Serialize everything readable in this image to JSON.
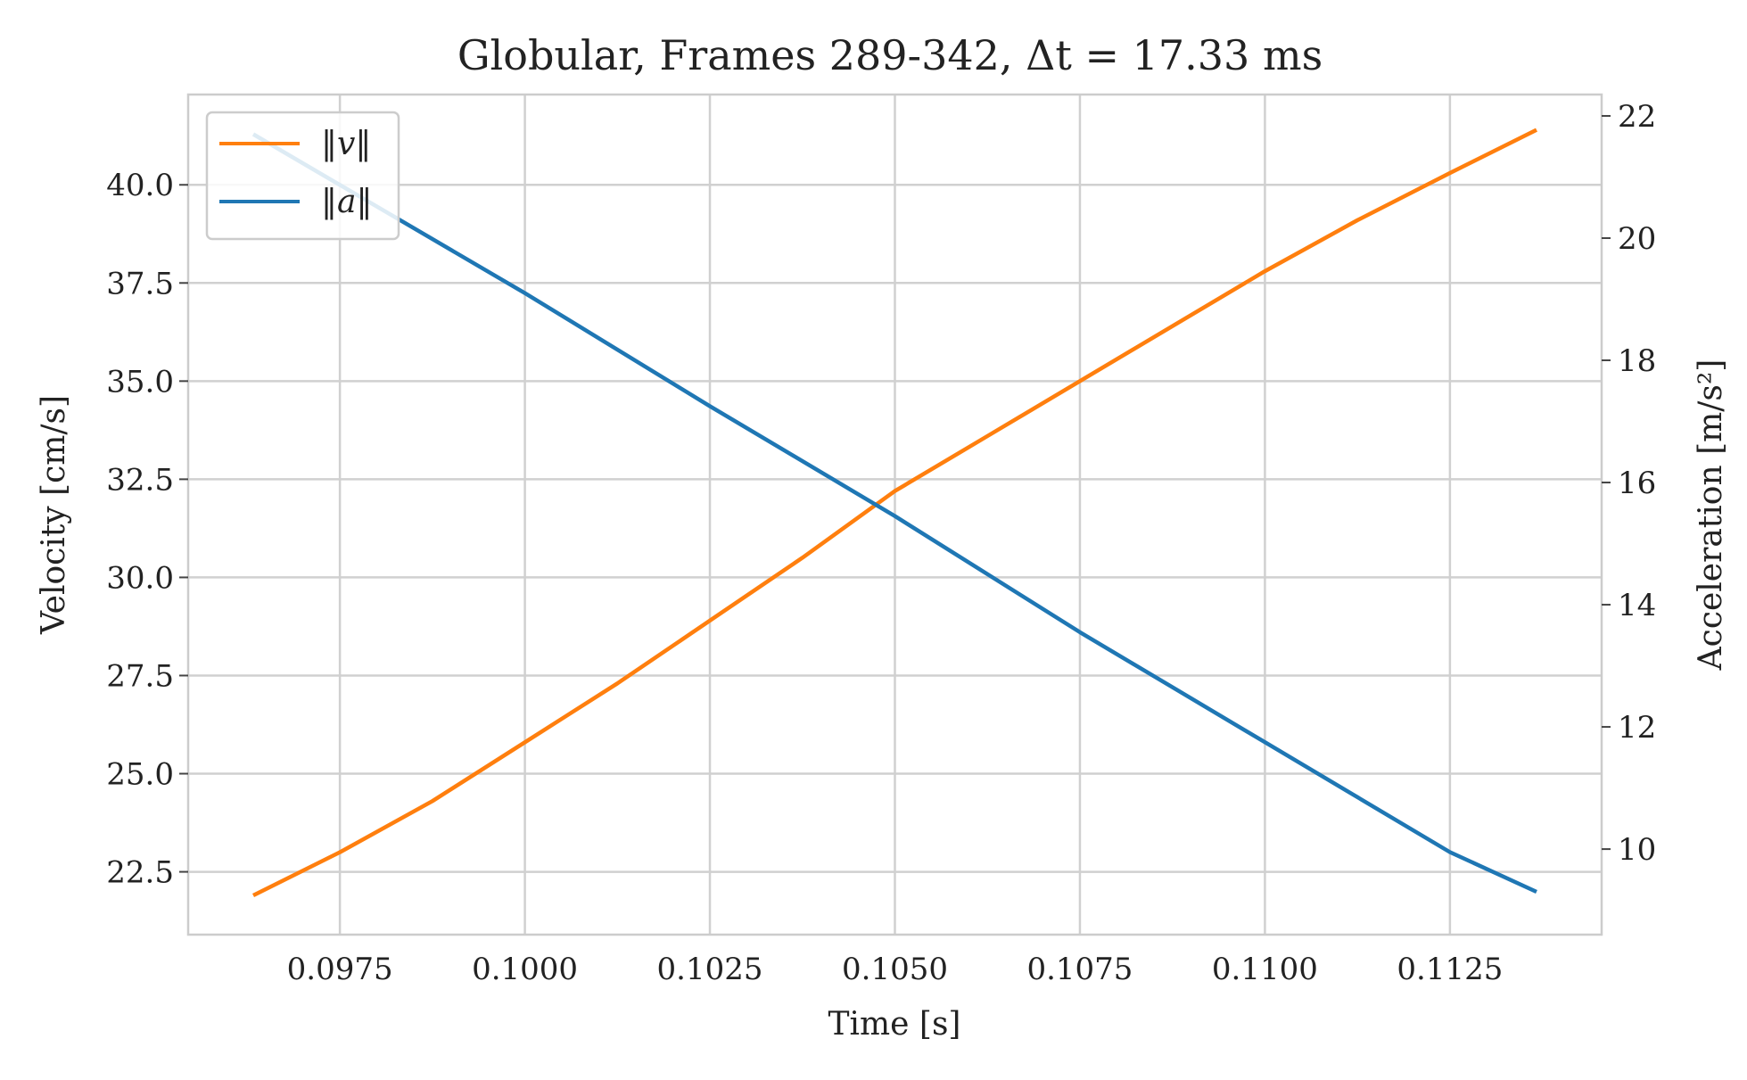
{
  "chart_data": {
    "type": "line",
    "title": "Globular, Frames 289-342, Δt = 17.33 ms",
    "xlabel": "Time [s]",
    "ylabel_left": "Velocity [cm/s]",
    "ylabel_right": "Acceleration [m/s²]",
    "xlim": [
      0.09545,
      0.11455
    ],
    "ylim_left": [
      20.9,
      42.3
    ],
    "ylim_right": [
      8.6,
      22.35
    ],
    "x_ticks": [
      0.0975,
      0.1,
      0.1025,
      0.105,
      0.1075,
      0.11,
      0.1125
    ],
    "x_tick_labels": [
      "0.0975",
      "0.1000",
      "0.1025",
      "0.1050",
      "0.1075",
      "0.1100",
      "0.1125"
    ],
    "y_left_ticks": [
      22.5,
      25.0,
      27.5,
      30.0,
      32.5,
      35.0,
      37.5,
      40.0
    ],
    "y_left_tick_labels": [
      "22.5",
      "25.0",
      "27.5",
      "30.0",
      "32.5",
      "35.0",
      "37.5",
      "40.0"
    ],
    "y_right_ticks": [
      10,
      12,
      14,
      16,
      18,
      20,
      22
    ],
    "y_right_tick_labels": [
      "10",
      "12",
      "14",
      "16",
      "18",
      "20",
      "22"
    ],
    "grid": true,
    "legend_position": "top-left",
    "series": [
      {
        "name": "‖v‖",
        "axis": "left",
        "color": "#ff7f0e",
        "x": [
          0.09633,
          0.0975,
          0.09875,
          0.1,
          0.10125,
          0.1025,
          0.10375,
          0.105,
          0.10625,
          0.1075,
          0.10875,
          0.11,
          0.11125,
          0.1125,
          0.11367
        ],
        "values": [
          21.9,
          23.0,
          24.3,
          25.8,
          27.3,
          28.9,
          30.5,
          32.2,
          33.6,
          35.0,
          36.4,
          37.8,
          39.1,
          40.3,
          41.4
        ]
      },
      {
        "name": "‖a‖",
        "axis": "right",
        "color": "#1f77b4",
        "x": [
          0.09633,
          0.1,
          0.1025,
          0.105,
          0.1075,
          0.11,
          0.1125,
          0.11367
        ],
        "values": [
          21.7,
          19.1,
          17.25,
          15.45,
          13.55,
          11.75,
          9.95,
          9.3
        ]
      }
    ]
  }
}
